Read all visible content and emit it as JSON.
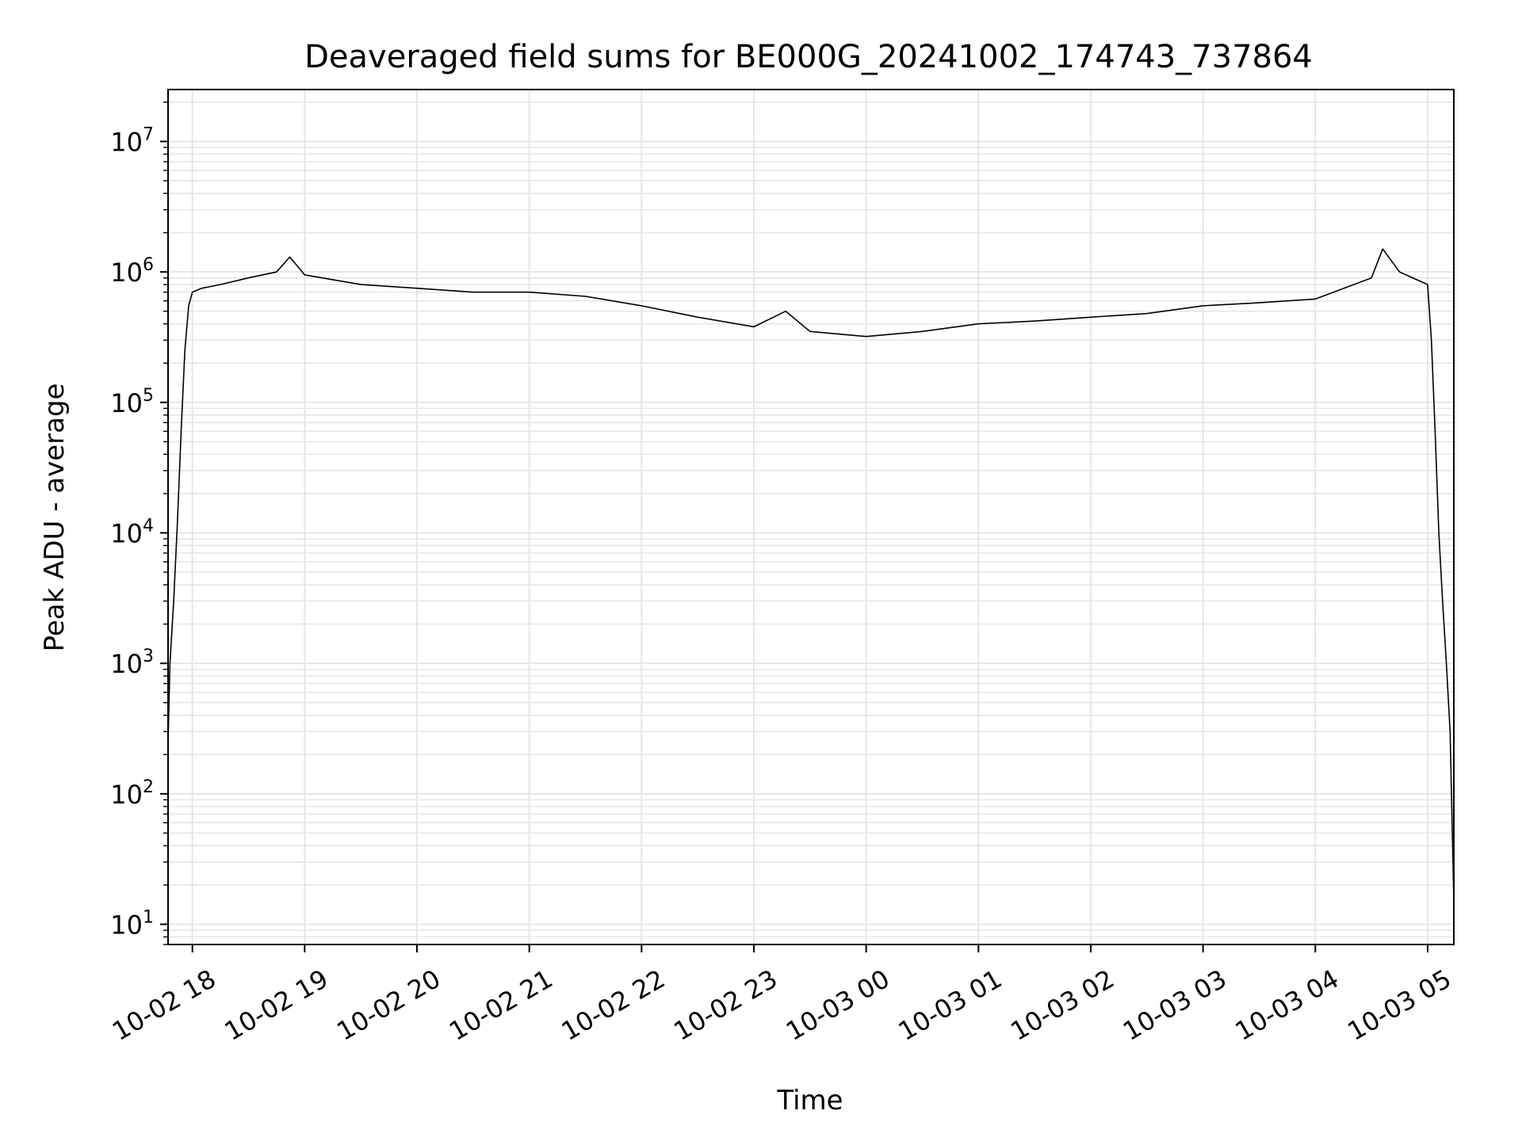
{
  "chart_data": {
    "type": "line",
    "title": "Deaveraged field sums for BE000G_20241002_174743_737864",
    "xlabel": "Time",
    "ylabel": "Peak ADU - average",
    "yscale": "log",
    "ylim": [
      7,
      25000000
    ],
    "xlim": [
      "2024-10-02 17:47",
      "2024-10-03 05:14"
    ],
    "grid": true,
    "line_color": "#000000",
    "grid_color": "#e6e6e6",
    "x_ticks": [
      {
        "label": "10-02 18",
        "at": "2024-10-02 18:00"
      },
      {
        "label": "10-02 19",
        "at": "2024-10-02 19:00"
      },
      {
        "label": "10-02 20",
        "at": "2024-10-02 20:00"
      },
      {
        "label": "10-02 21",
        "at": "2024-10-02 21:00"
      },
      {
        "label": "10-02 22",
        "at": "2024-10-02 22:00"
      },
      {
        "label": "10-02 23",
        "at": "2024-10-02 23:00"
      },
      {
        "label": "10-03 00",
        "at": "2024-10-03 00:00"
      },
      {
        "label": "10-03 01",
        "at": "2024-10-03 01:00"
      },
      {
        "label": "10-03 02",
        "at": "2024-10-03 02:00"
      },
      {
        "label": "10-03 03",
        "at": "2024-10-03 03:00"
      },
      {
        "label": "10-03 04",
        "at": "2024-10-03 04:00"
      },
      {
        "label": "10-03 05",
        "at": "2024-10-03 05:00"
      }
    ],
    "y_ticks": [
      {
        "base": "10",
        "exp": "1",
        "value": 10
      },
      {
        "base": "10",
        "exp": "2",
        "value": 100
      },
      {
        "base": "10",
        "exp": "3",
        "value": 1000
      },
      {
        "base": "10",
        "exp": "4",
        "value": 10000
      },
      {
        "base": "10",
        "exp": "5",
        "value": 100000
      },
      {
        "base": "10",
        "exp": "6",
        "value": 1000000
      },
      {
        "base": "10",
        "exp": "7",
        "value": 10000000
      }
    ],
    "series": [
      {
        "x": [
          "2024-10-02 17:47",
          "2024-10-02 17:48",
          "2024-10-02 17:50",
          "2024-10-02 17:52",
          "2024-10-02 17:54",
          "2024-10-02 17:56",
          "2024-10-02 17:58",
          "2024-10-02 18:00",
          "2024-10-02 18:05",
          "2024-10-02 18:15",
          "2024-10-02 18:30",
          "2024-10-02 18:45",
          "2024-10-02 18:52",
          "2024-10-02 19:00",
          "2024-10-02 19:30",
          "2024-10-02 20:00",
          "2024-10-02 20:30",
          "2024-10-02 21:00",
          "2024-10-02 21:30",
          "2024-10-02 22:00",
          "2024-10-02 22:30",
          "2024-10-02 23:00",
          "2024-10-02 23:17",
          "2024-10-02 23:30",
          "2024-10-03 00:00",
          "2024-10-03 00:30",
          "2024-10-03 01:00",
          "2024-10-03 01:30",
          "2024-10-03 02:00",
          "2024-10-03 02:30",
          "2024-10-03 03:00",
          "2024-10-03 03:30",
          "2024-10-03 04:00",
          "2024-10-03 04:30",
          "2024-10-03 04:36",
          "2024-10-03 04:45",
          "2024-10-03 05:00",
          "2024-10-03 05:02",
          "2024-10-03 05:04",
          "2024-10-03 05:06",
          "2024-10-03 05:08",
          "2024-10-03 05:10",
          "2024-10-03 05:12",
          "2024-10-03 05:14"
        ],
        "y": [
          250,
          1000,
          3000,
          12000,
          60000,
          250000,
          550000,
          700000,
          750000,
          800000,
          900000,
          1000000,
          1300000,
          950000,
          800000,
          750000,
          700000,
          700000,
          650000,
          550000,
          450000,
          380000,
          500000,
          350000,
          320000,
          350000,
          400000,
          420000,
          450000,
          480000,
          550000,
          580000,
          620000,
          900000,
          1500000,
          1000000,
          800000,
          300000,
          60000,
          10000,
          3000,
          1000,
          300,
          15
        ]
      }
    ]
  }
}
